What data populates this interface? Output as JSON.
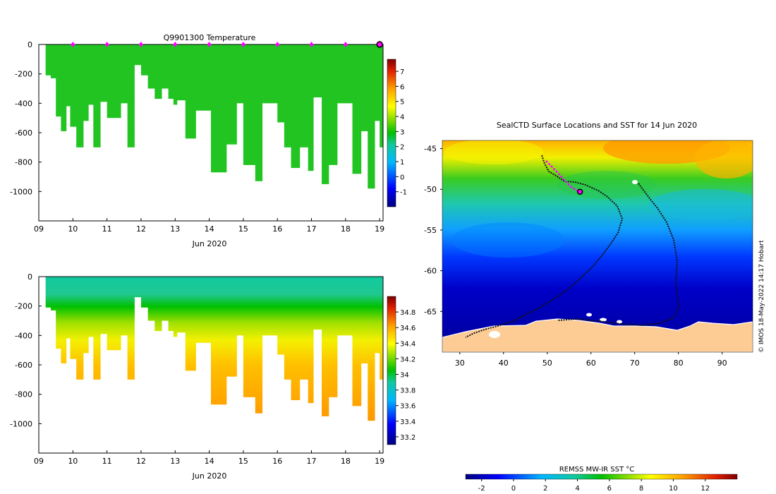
{
  "chart_data": [
    {
      "type": "heatmap",
      "title": "Q9901300  Temperature",
      "xlabel": "Jun 2020",
      "ylabel": "",
      "x_ticks": [
        9,
        10,
        11,
        12,
        13,
        14,
        15,
        16,
        17,
        18,
        19
      ],
      "x_tick_labels": [
        "09",
        "10",
        "11",
        "12",
        "13",
        "14",
        "15",
        "16",
        "17",
        "18",
        "19"
      ],
      "xlim": [
        9,
        19.1
      ],
      "ylim": [
        -1200,
        0
      ],
      "y_ticks": [
        0,
        -200,
        -400,
        -600,
        -800,
        -1000
      ],
      "y_tick_labels": [
        "0",
        "-200",
        "-400",
        "-600",
        "-800",
        "-1000"
      ],
      "colorbar": {
        "min": -2,
        "max": 7.8,
        "ticks": [
          7,
          6,
          5,
          4,
          3,
          2,
          1,
          0,
          -1
        ]
      },
      "surface_markers_days": [
        10,
        11,
        12,
        13,
        14,
        15,
        16,
        17,
        18
      ],
      "current_marker_day": 19,
      "profiles": [
        {
          "day": 9.2,
          "depth": 210
        },
        {
          "day": 9.35,
          "depth": 230
        },
        {
          "day": 9.5,
          "depth": 490
        },
        {
          "day": 9.65,
          "depth": 590
        },
        {
          "day": 9.8,
          "depth": 420
        },
        {
          "day": 9.92,
          "depth": 560
        },
        {
          "day": 10.1,
          "depth": 700
        },
        {
          "day": 10.3,
          "depth": 520
        },
        {
          "day": 10.45,
          "depth": 410
        },
        {
          "day": 10.6,
          "depth": 700
        },
        {
          "day": 10.8,
          "depth": 390
        },
        {
          "day": 11.0,
          "depth": 500
        },
        {
          "day": 11.2,
          "depth": 500
        },
        {
          "day": 11.4,
          "depth": 400
        },
        {
          "day": 11.6,
          "depth": 700
        },
        {
          "day": 11.8,
          "depth": 140
        },
        {
          "day": 12.0,
          "depth": 210
        },
        {
          "day": 12.2,
          "depth": 300
        },
        {
          "day": 12.4,
          "depth": 370
        },
        {
          "day": 12.6,
          "depth": 300
        },
        {
          "day": 12.8,
          "depth": 370
        },
        {
          "day": 12.95,
          "depth": 410
        },
        {
          "day": 13.05,
          "depth": 380
        },
        {
          "day": 13.3,
          "depth": 640
        },
        {
          "day": 13.6,
          "depth": 450
        },
        {
          "day": 13.9,
          "depth": 450
        },
        {
          "day": 14.05,
          "depth": 870
        },
        {
          "day": 14.3,
          "depth": 870
        },
        {
          "day": 14.5,
          "depth": 680
        },
        {
          "day": 14.8,
          "depth": 400
        },
        {
          "day": 15.0,
          "depth": 820
        },
        {
          "day": 15.2,
          "depth": 820
        },
        {
          "day": 15.35,
          "depth": 930
        },
        {
          "day": 15.55,
          "depth": 400
        },
        {
          "day": 15.75,
          "depth": 400
        },
        {
          "day": 16.0,
          "depth": 530
        },
        {
          "day": 16.2,
          "depth": 700
        },
        {
          "day": 16.4,
          "depth": 840
        },
        {
          "day": 16.65,
          "depth": 700
        },
        {
          "day": 16.9,
          "depth": 860
        },
        {
          "day": 17.05,
          "depth": 360
        },
        {
          "day": 17.3,
          "depth": 950
        },
        {
          "day": 17.5,
          "depth": 820
        },
        {
          "day": 17.75,
          "depth": 400
        },
        {
          "day": 17.95,
          "depth": 400
        },
        {
          "day": 18.2,
          "depth": 880
        },
        {
          "day": 18.45,
          "depth": 590
        },
        {
          "day": 18.65,
          "depth": 980
        },
        {
          "day": 18.85,
          "depth": 520
        },
        {
          "day": 19.0,
          "depth": 700
        }
      ]
    },
    {
      "type": "heatmap",
      "title": "",
      "xlabel": "Jun 2020",
      "ylabel": "",
      "x_ticks": [
        9,
        10,
        11,
        12,
        13,
        14,
        15,
        16,
        17,
        18,
        19
      ],
      "x_tick_labels": [
        "09",
        "10",
        "11",
        "12",
        "13",
        "14",
        "15",
        "16",
        "17",
        "18",
        "19"
      ],
      "xlim": [
        9,
        19.1
      ],
      "ylim": [
        -1200,
        0
      ],
      "y_ticks": [
        0,
        -200,
        -400,
        -600,
        -800,
        -1000
      ],
      "y_tick_labels": [
        "0",
        "-200",
        "-400",
        "-600",
        "-800",
        "-1000"
      ],
      "colorbar": {
        "min": 33.1,
        "max": 35.0,
        "ticks": [
          34.8,
          34.6,
          34.4,
          34.2,
          34,
          33.8,
          33.6,
          33.4,
          33.2
        ],
        "tick_labels": [
          "34.8",
          "34.6",
          "34.4",
          "34.2",
          "34",
          "33.8",
          "33.6",
          "33.4",
          "33.2"
        ]
      }
    },
    {
      "type": "heatmap",
      "title": "SealCTD Surface Locations and SST for 14 Jun 2020",
      "xlabel": "",
      "ylabel": "",
      "xlim": [
        26,
        97
      ],
      "ylim": [
        -70,
        -44
      ],
      "x_ticks": [
        30,
        40,
        50,
        60,
        70,
        80,
        90
      ],
      "x_tick_labels": [
        "30",
        "40",
        "50",
        "60",
        "70",
        "80",
        "90"
      ],
      "y_ticks": [
        -45,
        -50,
        -55,
        -60,
        -65
      ],
      "y_tick_labels": [
        "-45",
        "-50",
        "-55",
        "-60",
        "-65"
      ],
      "colorbar_title": "REMSS MW-IR SST °C",
      "colorbar": {
        "min": -3,
        "max": 14,
        "ticks": [
          -2,
          0,
          2,
          4,
          6,
          8,
          10,
          12
        ],
        "tick_labels": [
          "-2",
          "0",
          "2",
          "4",
          "6",
          "8",
          "10",
          "12"
        ]
      },
      "current_position": {
        "lon": 57.5,
        "lat": -50.3
      },
      "recent_track": [
        [
          49.7,
          -46.5
        ],
        [
          51.0,
          -47.2
        ],
        [
          52.5,
          -48.0
        ],
        [
          53.8,
          -48.8
        ],
        [
          55.2,
          -49.6
        ],
        [
          56.6,
          -50.1
        ],
        [
          57.5,
          -50.3
        ]
      ]
    }
  ],
  "credit": "© IMOS 18-May-2022 14:17 Hobart"
}
